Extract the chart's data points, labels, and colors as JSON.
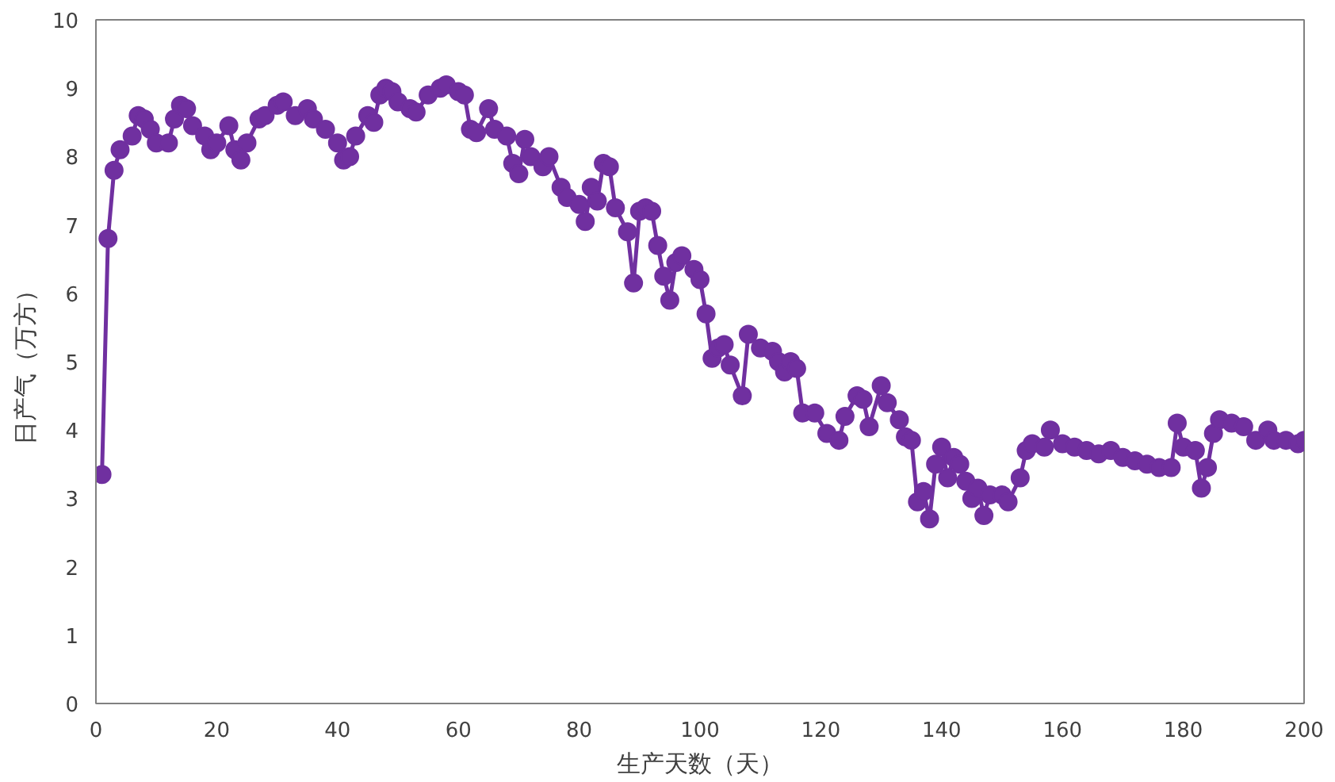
{
  "chart_data": {
    "type": "line",
    "xlabel": "生产天数（天）",
    "ylabel": "日产气（万方）",
    "xlim": [
      0,
      200
    ],
    "xticks": [
      0,
      20,
      40,
      60,
      80,
      100,
      120,
      140,
      160,
      180,
      200
    ],
    "ylim": [
      0,
      10
    ],
    "yticks": [
      0,
      1,
      2,
      3,
      4,
      5,
      6,
      7,
      8,
      9,
      10
    ],
    "grid": false,
    "marker": "circle",
    "line_style": "solid",
    "x": [
      1,
      2,
      3,
      4,
      6,
      7,
      8,
      9,
      10,
      12,
      13,
      14,
      15,
      16,
      18,
      19,
      20,
      22,
      23,
      24,
      25,
      27,
      28,
      30,
      31,
      33,
      35,
      36,
      38,
      40,
      41,
      42,
      43,
      45,
      46,
      47,
      48,
      49,
      50,
      52,
      53,
      55,
      57,
      58,
      60,
      61,
      62,
      63,
      65,
      66,
      68,
      69,
      70,
      71,
      72,
      74,
      75,
      77,
      78,
      80,
      81,
      82,
      83,
      84,
      85,
      86,
      88,
      89,
      90,
      91,
      92,
      93,
      94,
      95,
      96,
      97,
      99,
      100,
      101,
      102,
      103,
      104,
      105,
      107,
      108,
      110,
      112,
      113,
      114,
      115,
      116,
      117,
      119,
      121,
      123,
      124,
      126,
      127,
      128,
      130,
      131,
      133,
      134,
      135,
      136,
      137,
      138,
      139,
      140,
      141,
      142,
      143,
      144,
      145,
      146,
      147,
      148,
      150,
      151,
      153,
      154,
      155,
      157,
      158,
      160,
      162,
      164,
      166,
      168,
      170,
      172,
      174,
      176,
      178,
      179,
      180,
      182,
      183,
      184,
      185,
      186,
      188,
      190,
      192,
      194,
      195,
      197,
      199,
      200
    ],
    "series": [
      {
        "color": "#7030a0",
        "values": [
          3.35,
          6.8,
          7.8,
          8.1,
          8.3,
          8.6,
          8.55,
          8.4,
          8.2,
          8.2,
          8.55,
          8.75,
          8.7,
          8.45,
          8.3,
          8.1,
          8.2,
          8.45,
          8.1,
          7.95,
          8.2,
          8.55,
          8.6,
          8.75,
          8.8,
          8.6,
          8.7,
          8.55,
          8.4,
          8.2,
          7.95,
          8.0,
          8.3,
          8.6,
          8.5,
          8.9,
          9.0,
          8.95,
          8.8,
          8.7,
          8.65,
          8.9,
          9.0,
          9.05,
          8.95,
          8.9,
          8.4,
          8.35,
          8.7,
          8.4,
          8.3,
          7.9,
          7.75,
          8.25,
          8.0,
          7.85,
          8.0,
          7.55,
          7.4,
          7.3,
          7.05,
          7.55,
          7.35,
          7.9,
          7.85,
          7.25,
          6.9,
          6.15,
          7.2,
          7.25,
          7.2,
          6.7,
          6.25,
          5.9,
          6.45,
          6.55,
          6.35,
          6.2,
          5.7,
          5.05,
          5.2,
          5.25,
          4.95,
          4.5,
          5.4,
          5.2,
          5.15,
          5.0,
          4.85,
          5.0,
          4.9,
          4.25,
          4.25,
          3.95,
          3.85,
          4.2,
          4.5,
          4.45,
          4.05,
          4.65,
          4.4,
          4.15,
          3.9,
          3.85,
          2.95,
          3.1,
          2.7,
          3.5,
          3.75,
          3.3,
          3.6,
          3.5,
          3.25,
          3.0,
          3.15,
          2.75,
          3.05,
          3.05,
          2.95,
          3.3,
          3.7,
          3.8,
          3.75,
          4.0,
          3.8,
          3.75,
          3.7,
          3.65,
          3.7,
          3.6,
          3.55,
          3.5,
          3.45,
          3.45,
          4.1,
          3.75,
          3.7,
          3.15,
          3.45,
          3.95,
          4.15,
          4.1,
          4.05,
          3.85,
          4.0,
          3.85,
          3.85,
          3.8,
          3.85
        ]
      }
    ]
  }
}
